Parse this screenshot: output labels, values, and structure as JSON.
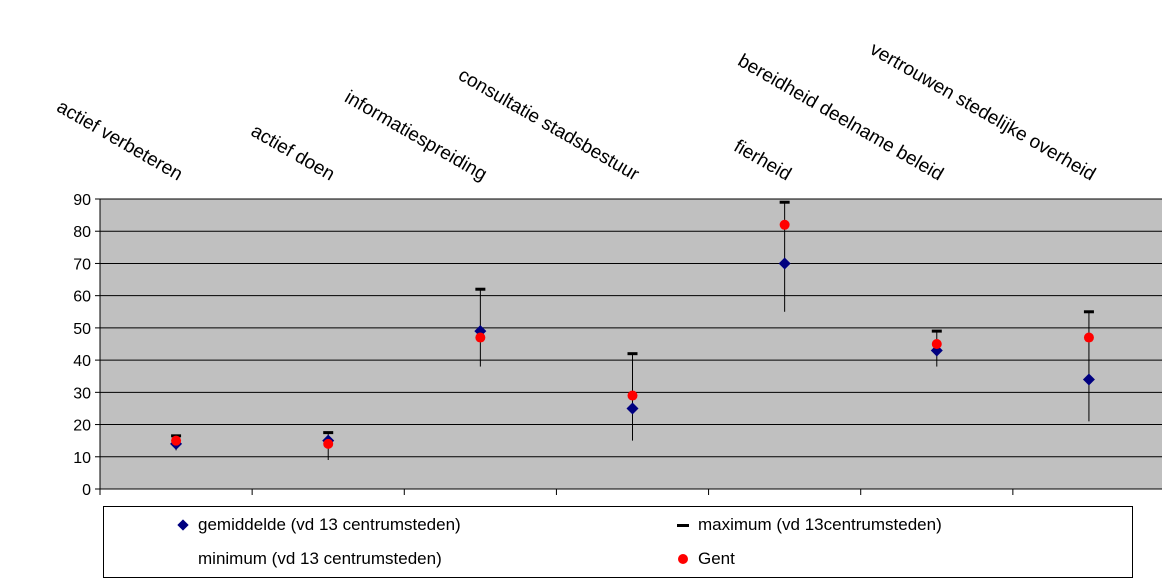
{
  "chart_data": {
    "type": "scatter",
    "categories": [
      "actief verbeteren",
      "actief doen",
      "informatiespreiding",
      "consultatie stadsbestuur",
      "fierheid",
      "bereidheid deelname beleid",
      "vertrouwen stedelijke overheid"
    ],
    "series": [
      {
        "name": "gemiddelde (vd 13 centrumsteden)",
        "marker": "diamond",
        "color": "#000080",
        "values": [
          14,
          15,
          49,
          25,
          70,
          43,
          34
        ]
      },
      {
        "name": "maximum (vd 13centrumsteden)",
        "marker": "dash",
        "color": "#000000",
        "values": [
          16.5,
          17.5,
          62,
          42,
          89,
          49,
          55
        ]
      },
      {
        "name": "minimum (vd 13 centrumsteden)",
        "marker": "none",
        "color": "#000000",
        "values": [
          12,
          9,
          38,
          15,
          55,
          38,
          21
        ]
      },
      {
        "name": "Gent",
        "marker": "circle",
        "color": "#ff0000",
        "values": [
          15,
          14,
          47,
          29,
          82,
          45,
          47
        ]
      }
    ],
    "yticks": [
      0,
      10,
      20,
      30,
      40,
      50,
      60,
      70,
      80,
      90
    ],
    "ylim": [
      0,
      90
    ],
    "grid": true,
    "plot_background": "#c0c0c0",
    "legend_position": "bottom"
  }
}
